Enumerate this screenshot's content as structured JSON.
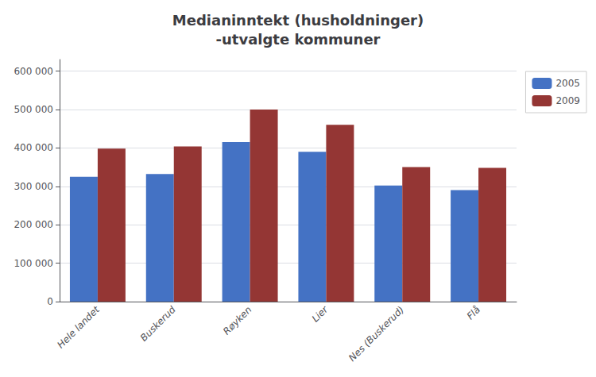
{
  "chart_data": {
    "type": "bar",
    "title": "Medianinntekt (husholdninger)\n-utvalgte kommuner",
    "categories": [
      "Hele landet",
      "Buskerud",
      "Røyken",
      "Lier",
      "Nes (Buskerud)",
      "Flå"
    ],
    "series": [
      {
        "name": "2005",
        "color": "#4472C4",
        "values": [
          325000,
          332000,
          415000,
          390000,
          302000,
          290000
        ]
      },
      {
        "name": "2009",
        "color": "#943634",
        "values": [
          398000,
          404000,
          500000,
          460000,
          350000,
          348000
        ]
      }
    ],
    "ylim": [
      0,
      630000
    ],
    "yticks": [
      0,
      {
        "value": 100000,
        "label": "100 000"
      },
      {
        "value": 200000,
        "label": "200 000"
      },
      {
        "value": 300000,
        "label": "300 000"
      },
      {
        "value": 400000,
        "label": "400 000"
      },
      {
        "value": 500000,
        "label": "500 000"
      },
      {
        "value": 600000,
        "label": "600 000"
      }
    ],
    "grid": true,
    "legend": "upper right"
  }
}
